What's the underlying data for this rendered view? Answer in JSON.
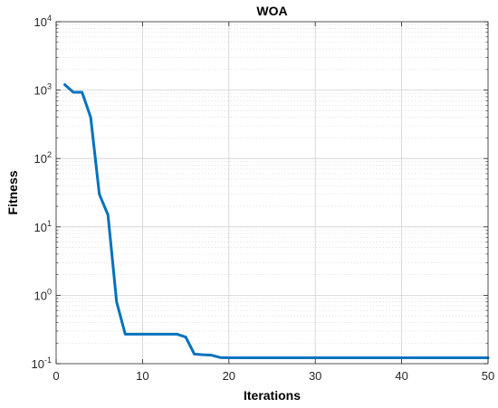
{
  "chart_data": {
    "type": "line",
    "title": "WOA",
    "xlabel": "Iterations",
    "ylabel": "Fitness",
    "xlim": [
      0,
      50
    ],
    "ylim": [
      0.1,
      10000
    ],
    "yscale": "log",
    "grid": true,
    "x_ticks": [
      {
        "value": 0,
        "label": "0"
      },
      {
        "value": 10,
        "label": "10"
      },
      {
        "value": 20,
        "label": "20"
      },
      {
        "value": 30,
        "label": "30"
      },
      {
        "value": 40,
        "label": "40"
      },
      {
        "value": 50,
        "label": "50"
      }
    ],
    "y_ticks": [
      {
        "value": 0.1,
        "base": "10",
        "exp": "-1"
      },
      {
        "value": 1,
        "base": "10",
        "exp": "0"
      },
      {
        "value": 10,
        "base": "10",
        "exp": "1"
      },
      {
        "value": 100,
        "base": "10",
        "exp": "2"
      },
      {
        "value": 1000,
        "base": "10",
        "exp": "3"
      },
      {
        "value": 10000,
        "base": "10",
        "exp": "4"
      }
    ],
    "series": [
      {
        "color": "#0072BD",
        "x": [
          1,
          2,
          3,
          4,
          5,
          6,
          7,
          8,
          9,
          10,
          11,
          12,
          13,
          14,
          15,
          16,
          17,
          18,
          19,
          20,
          21,
          22,
          23,
          24,
          25,
          26,
          27,
          28,
          29,
          30,
          31,
          32,
          33,
          34,
          35,
          36,
          37,
          38,
          39,
          40,
          41,
          42,
          43,
          44,
          45,
          46,
          47,
          48,
          49,
          50
        ],
        "y": [
          1200,
          930,
          930,
          400,
          30,
          15,
          0.8,
          0.27,
          0.27,
          0.27,
          0.27,
          0.27,
          0.27,
          0.27,
          0.245,
          0.138,
          0.135,
          0.133,
          0.123,
          0.122,
          0.122,
          0.122,
          0.122,
          0.122,
          0.122,
          0.122,
          0.122,
          0.122,
          0.122,
          0.122,
          0.122,
          0.122,
          0.122,
          0.122,
          0.122,
          0.122,
          0.122,
          0.122,
          0.122,
          0.122,
          0.122,
          0.122,
          0.122,
          0.122,
          0.122,
          0.122,
          0.122,
          0.122,
          0.122,
          0.122
        ]
      }
    ]
  }
}
